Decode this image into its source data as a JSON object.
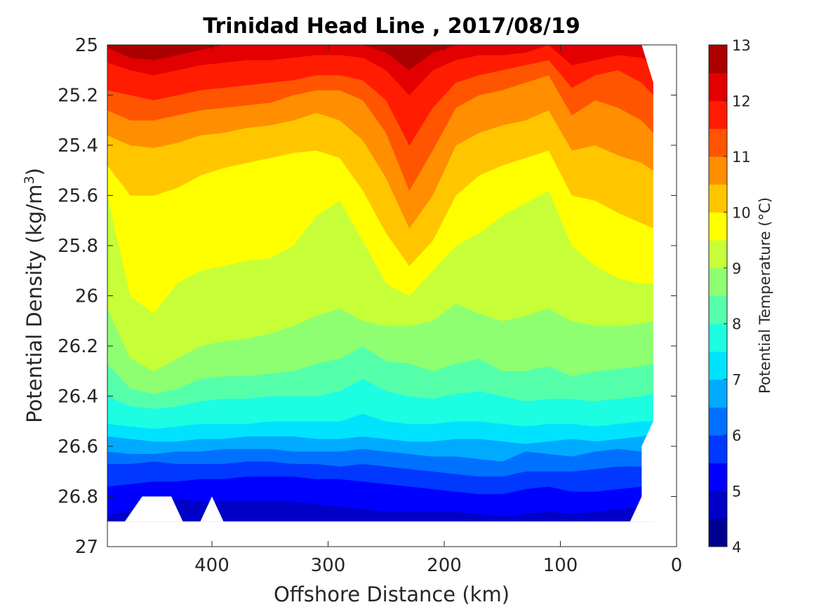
{
  "chart_data": {
    "type": "heatmap",
    "subtype": "filled-contour",
    "title": "Trinidad Head Line , 2017/08/19",
    "xlabel": "Offshore Distance (km)",
    "ylabel": "Potential Density (kg/m",
    "ylabel_superscript": "3",
    "ylabel_suffix": ")",
    "colorbar_label": "Potential Temperature (°C)",
    "xlim": [
      490,
      0
    ],
    "x_reversed": true,
    "ylim": [
      25,
      27
    ],
    "y_reversed": true,
    "xticks": [
      400,
      300,
      200,
      100,
      0
    ],
    "yticks": [
      25,
      25.2,
      25.4,
      25.6,
      25.8,
      26,
      26.2,
      26.4,
      26.6,
      26.8,
      27
    ],
    "ytick_labels": [
      "25",
      "25.2",
      "25.4",
      "25.6",
      "25.8",
      "26",
      "26.2",
      "26.4",
      "26.6",
      "26.8",
      "27"
    ],
    "colorbar_ticks": [
      4,
      5,
      6,
      7,
      8,
      9,
      10,
      11,
      12,
      13
    ],
    "colorbar_range": [
      4,
      13
    ],
    "contour_step": 0.5,
    "colormap": [
      "#00008f",
      "#0000c6",
      "#0000fe",
      "#0038ff",
      "#0071ff",
      "#00aaff",
      "#00e3ff",
      "#1cfde2",
      "#55ffaa",
      "#8eff71",
      "#c6ff38",
      "#ffff00",
      "#ffc600",
      "#ff8e00",
      "#ff5500",
      "#ff1c00",
      "#e20000",
      "#aa0000"
    ],
    "grid": false,
    "x_distances": [
      490,
      470,
      450,
      430,
      410,
      390,
      370,
      350,
      330,
      310,
      290,
      270,
      250,
      230,
      210,
      190,
      170,
      150,
      130,
      110,
      90,
      70,
      50,
      30,
      20
    ],
    "isotherms": [
      {
        "temp": 12.5,
        "density": [
          25.01,
          25.05,
          25.06,
          25.04,
          25.02,
          25.0,
          25.0,
          25.0,
          25.0,
          25.0,
          25.0,
          25.0,
          25.03,
          25.1,
          25.03,
          25.0,
          25.0,
          25.0,
          25.0,
          25.0,
          25.0,
          25.0,
          25.0,
          25.0,
          25.0
        ]
      },
      {
        "temp": 12.0,
        "density": [
          25.07,
          25.1,
          25.12,
          25.1,
          25.08,
          25.07,
          25.06,
          25.06,
          25.05,
          25.04,
          25.04,
          25.05,
          25.1,
          25.2,
          25.1,
          25.06,
          25.04,
          25.04,
          25.03,
          25.0,
          25.08,
          25.06,
          25.04,
          25.05,
          25.08
        ]
      },
      {
        "temp": 11.5,
        "density": [
          25.18,
          25.2,
          25.22,
          25.2,
          25.18,
          25.17,
          25.16,
          25.15,
          25.14,
          25.12,
          25.12,
          25.14,
          25.22,
          25.4,
          25.25,
          25.15,
          25.12,
          25.1,
          25.08,
          25.06,
          25.17,
          25.12,
          25.1,
          25.15,
          25.2
        ]
      },
      {
        "temp": 11.0,
        "density": [
          25.26,
          25.3,
          25.3,
          25.28,
          25.26,
          25.25,
          25.24,
          25.23,
          25.2,
          25.18,
          25.18,
          25.22,
          25.35,
          25.58,
          25.42,
          25.25,
          25.2,
          25.18,
          25.15,
          25.12,
          25.28,
          25.22,
          25.25,
          25.3,
          25.35
        ]
      },
      {
        "temp": 10.5,
        "density": [
          25.36,
          25.4,
          25.41,
          25.39,
          25.36,
          25.35,
          25.33,
          25.32,
          25.3,
          25.27,
          25.3,
          25.38,
          25.53,
          25.73,
          25.6,
          25.4,
          25.35,
          25.32,
          25.3,
          25.26,
          25.42,
          25.4,
          25.44,
          25.47,
          25.5
        ]
      },
      {
        "temp": 10.0,
        "density": [
          25.48,
          25.6,
          25.6,
          25.57,
          25.52,
          25.49,
          25.47,
          25.45,
          25.43,
          25.42,
          25.45,
          25.58,
          25.75,
          25.88,
          25.78,
          25.6,
          25.52,
          25.48,
          25.45,
          25.42,
          25.6,
          25.62,
          25.67,
          25.71,
          25.73
        ]
      },
      {
        "temp": 9.5,
        "density": [
          25.6,
          26.0,
          26.07,
          25.95,
          25.9,
          25.88,
          25.86,
          25.85,
          25.8,
          25.68,
          25.62,
          25.78,
          25.95,
          26.0,
          25.9,
          25.8,
          25.75,
          25.68,
          25.63,
          25.58,
          25.8,
          25.88,
          25.93,
          25.95,
          25.95
        ]
      },
      {
        "temp": 9.0,
        "density": [
          26.05,
          26.25,
          26.3,
          26.25,
          26.2,
          26.18,
          26.17,
          26.15,
          26.12,
          26.08,
          26.05,
          26.1,
          26.12,
          26.12,
          26.1,
          26.03,
          26.07,
          26.1,
          26.08,
          26.05,
          26.1,
          26.12,
          26.12,
          26.11,
          26.1
        ]
      },
      {
        "temp": 8.5,
        "density": [
          26.27,
          26.37,
          26.39,
          26.37,
          26.33,
          26.32,
          26.32,
          26.31,
          26.3,
          26.27,
          26.25,
          26.2,
          26.26,
          26.27,
          26.3,
          26.27,
          26.25,
          26.3,
          26.3,
          26.28,
          26.32,
          26.3,
          26.29,
          26.28,
          26.27
        ]
      },
      {
        "temp": 8.0,
        "density": [
          26.4,
          26.44,
          26.45,
          26.44,
          26.42,
          26.41,
          26.41,
          26.4,
          26.4,
          26.4,
          26.38,
          26.33,
          26.38,
          26.4,
          26.41,
          26.39,
          26.38,
          26.4,
          26.42,
          26.41,
          26.41,
          26.42,
          26.41,
          26.4,
          26.39
        ]
      },
      {
        "temp": 7.5,
        "density": [
          26.51,
          26.52,
          26.53,
          26.52,
          26.51,
          26.51,
          26.51,
          26.5,
          26.5,
          26.5,
          26.5,
          26.47,
          26.5,
          26.51,
          26.51,
          26.5,
          26.5,
          26.51,
          26.52,
          26.51,
          26.51,
          26.52,
          26.51,
          26.5,
          26.5
        ]
      },
      {
        "temp": 7.0,
        "density": [
          26.56,
          26.57,
          26.58,
          26.58,
          26.57,
          26.57,
          26.56,
          26.56,
          26.56,
          26.57,
          26.57,
          26.56,
          26.57,
          26.58,
          26.58,
          26.57,
          26.57,
          26.58,
          26.59,
          26.58,
          26.57,
          26.58,
          26.57,
          26.56,
          26.55
        ]
      },
      {
        "temp": 6.5,
        "density": [
          26.62,
          26.63,
          26.63,
          26.62,
          26.62,
          26.61,
          26.61,
          26.61,
          26.62,
          26.62,
          26.62,
          26.61,
          26.62,
          26.63,
          26.64,
          26.64,
          26.65,
          26.66,
          26.62,
          26.63,
          26.64,
          26.62,
          26.61,
          26.62,
          26.63
        ]
      },
      {
        "temp": 6.0,
        "density": [
          26.67,
          26.67,
          26.66,
          26.67,
          26.67,
          26.67,
          26.66,
          26.66,
          26.67,
          26.67,
          26.68,
          26.67,
          26.68,
          26.69,
          26.7,
          26.71,
          26.72,
          26.72,
          26.7,
          26.7,
          26.7,
          26.69,
          26.68,
          26.68,
          26.68
        ]
      },
      {
        "temp": 5.5,
        "density": [
          26.76,
          26.75,
          26.74,
          26.74,
          26.73,
          26.73,
          26.72,
          26.72,
          26.72,
          26.73,
          26.73,
          26.74,
          26.75,
          26.76,
          26.77,
          26.78,
          26.79,
          26.79,
          26.77,
          26.76,
          26.78,
          26.78,
          26.77,
          26.76,
          26.76
        ]
      },
      {
        "temp": 5.0,
        "density": [
          26.88,
          26.85,
          26.82,
          26.81,
          26.82,
          26.82,
          26.82,
          26.82,
          26.82,
          26.83,
          26.84,
          26.85,
          26.86,
          26.86,
          26.86,
          26.86,
          26.87,
          26.88,
          26.87,
          26.86,
          26.87,
          26.86,
          26.85,
          26.84,
          26.84
        ]
      }
    ],
    "data_bottom_density": 26.9,
    "blank_regions": [
      {
        "x": [
          475,
          460,
          435,
          425
        ],
        "density_top": 26.8
      },
      {
        "x": [
          410,
          400,
          390
        ],
        "density_top": 26.8
      }
    ]
  }
}
